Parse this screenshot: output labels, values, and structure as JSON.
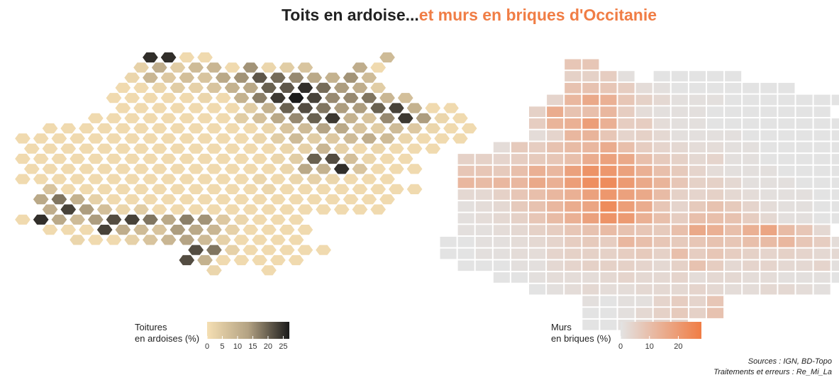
{
  "title": {
    "part1": "Toits en ardoise...",
    "part2": "et murs en briques d'Occitanie",
    "color1": "#222222",
    "color2": "#f07d45"
  },
  "chart_data": [
    {
      "type": "heatmap",
      "name": "hexbin-slate",
      "legend": {
        "title_line1": "Toitures",
        "title_line2": "en ardoises (%)",
        "ticks": [
          0,
          5,
          10,
          15,
          20,
          25
        ],
        "range": [
          0,
          27
        ],
        "colors": [
          "#f5dfb3",
          "#b3a283",
          "#1a1a1a"
        ]
      },
      "rows": [
        {
          "y": 0,
          "x0": 7,
          "values": [
            25,
            25,
            1,
            1,
            -1,
            -1,
            -1,
            -1,
            -1,
            -1,
            -1,
            -1,
            -1,
            8
          ]
        },
        {
          "y": 1,
          "x0": 6,
          "values": [
            3,
            11,
            4,
            8,
            9,
            1,
            15,
            2,
            4,
            6,
            -1,
            -1,
            11,
            1
          ]
        },
        {
          "y": 2,
          "x0": 6,
          "values": [
            2,
            9,
            5,
            7,
            6,
            12,
            15,
            21,
            19,
            16,
            12,
            10,
            15,
            8
          ]
        },
        {
          "y": 3,
          "x0": 5,
          "values": [
            1,
            1,
            2,
            4,
            3,
            6,
            10,
            12,
            20,
            21,
            25,
            19,
            14,
            11,
            4
          ]
        },
        {
          "y": 4,
          "x0": 5,
          "values": [
            1,
            1,
            1,
            1,
            1,
            2,
            1,
            10,
            17,
            24,
            27,
            23,
            16,
            16,
            18,
            9,
            7
          ]
        },
        {
          "y": 5,
          "x0": 5,
          "values": [
            1,
            1,
            1,
            1,
            1,
            1,
            1,
            4,
            10,
            20,
            22,
            18,
            14,
            14,
            20,
            23,
            10,
            1,
            1
          ]
        },
        {
          "y": 6,
          "x0": 4,
          "values": [
            1,
            1,
            1,
            1,
            1,
            1,
            1,
            1,
            4,
            7,
            12,
            16,
            20,
            24,
            10,
            6,
            16,
            24,
            14,
            2,
            1
          ]
        },
        {
          "y": 7,
          "x0": 1,
          "values": [
            1,
            1,
            1,
            1,
            1,
            1,
            1,
            1,
            1,
            1,
            1,
            1,
            2,
            6,
            8,
            13,
            12,
            6,
            4,
            8,
            5,
            2,
            1,
            1
          ]
        },
        {
          "y": 8,
          "x0": 0,
          "values": [
            1,
            1,
            1,
            1,
            1,
            1,
            1,
            1,
            1,
            1,
            1,
            1,
            1,
            2,
            4,
            8,
            4,
            5,
            8,
            11,
            8,
            2,
            1,
            1,
            1
          ]
        },
        {
          "y": 9,
          "x0": 0,
          "values": [
            1,
            1,
            1,
            1,
            1,
            1,
            1,
            1,
            1,
            1,
            1,
            1,
            1,
            1,
            2,
            3,
            9,
            3,
            1,
            2,
            1,
            1,
            1
          ]
        },
        {
          "y": 10,
          "x0": 0,
          "values": [
            1,
            1,
            1,
            1,
            1,
            1,
            1,
            1,
            1,
            1,
            1,
            1,
            1,
            1,
            2,
            4,
            20,
            22,
            7,
            2,
            1,
            1
          ]
        },
        {
          "y": 11,
          "x0": 0,
          "values": [
            1,
            1,
            1,
            1,
            1,
            1,
            1,
            1,
            1,
            1,
            1,
            1,
            1,
            1,
            2,
            12,
            10,
            25,
            6,
            1,
            1,
            1
          ]
        },
        {
          "y": 12,
          "x0": 0,
          "values": [
            1,
            1,
            1,
            1,
            1,
            1,
            1,
            1,
            1,
            1,
            1,
            1,
            1,
            2,
            1,
            2,
            3,
            2,
            1,
            1,
            1
          ]
        },
        {
          "y": 13,
          "x0": 1,
          "values": [
            6,
            1,
            1,
            1,
            1,
            1,
            1,
            1,
            1,
            1,
            1,
            1,
            2,
            1,
            1,
            1,
            1,
            1,
            1,
            1,
            1
          ]
        },
        {
          "y": 14,
          "x0": 1,
          "values": [
            12,
            18,
            10,
            3,
            1,
            1,
            1,
            1,
            1,
            1,
            1,
            1,
            1,
            1,
            1,
            1,
            1,
            1,
            1,
            1
          ]
        },
        {
          "y": 15,
          "x0": 1,
          "values": [
            11,
            23,
            14,
            7,
            2,
            4,
            1,
            1,
            1,
            1,
            1,
            1,
            1,
            1,
            1,
            1,
            1,
            1,
            1
          ]
        },
        {
          "y": 16,
          "x0": 0,
          "values": [
            1,
            25,
            12,
            8,
            14,
            22,
            23,
            18,
            12,
            17,
            15,
            5,
            2,
            1,
            1,
            1
          ]
        },
        {
          "y": 17,
          "x0": 1,
          "values": [
            1,
            1,
            1,
            23,
            11,
            8,
            6,
            14,
            12,
            9,
            3,
            1,
            1,
            1,
            1
          ]
        },
        {
          "y": 18,
          "x0": 3,
          "values": [
            2,
            1,
            1,
            3,
            6,
            9,
            13,
            8,
            3,
            1,
            1,
            1,
            1
          ]
        },
        {
          "y": 19,
          "x0": 9,
          "values": [
            22,
            18,
            3,
            1,
            1,
            1,
            1,
            1
          ]
        },
        {
          "y": 20,
          "x0": 9,
          "values": [
            22,
            10,
            1,
            1,
            1,
            1,
            1
          ]
        },
        {
          "y": 21,
          "x0": 10,
          "values": [
            2,
            -1,
            -1,
            1
          ]
        }
      ]
    },
    {
      "type": "heatmap",
      "name": "grid-brick",
      "legend": {
        "title_line1": "Murs",
        "title_line2": "en briques (%)",
        "ticks": [
          0,
          10,
          20
        ],
        "range": [
          0,
          28
        ],
        "colors": [
          "#e3e3e3",
          "#f07d45"
        ]
      },
      "rows": [
        {
          "y": 0,
          "x0": 7,
          "values": [
            8,
            8
          ]
        },
        {
          "y": 1,
          "x0": 7,
          "values": [
            5,
            5,
            6,
            1,
            -1,
            0,
            0,
            0,
            0,
            0
          ]
        },
        {
          "y": 2,
          "x0": 7,
          "values": [
            9,
            9,
            8,
            6,
            2,
            1,
            0,
            0,
            0,
            0,
            0,
            0,
            0
          ]
        },
        {
          "y": 3,
          "x0": 6,
          "values": [
            4,
            12,
            16,
            14,
            8,
            5,
            3,
            1,
            1,
            1,
            0,
            0,
            0,
            0,
            0,
            0,
            0
          ]
        },
        {
          "y": 4,
          "x0": 5,
          "values": [
            5,
            15,
            9,
            10,
            12,
            6,
            2,
            1,
            1,
            1,
            0,
            0,
            0,
            0,
            0,
            0,
            0
          ]
        },
        {
          "y": 5,
          "x0": 5,
          "values": [
            6,
            13,
            14,
            19,
            14,
            6,
            6,
            2,
            1,
            1,
            0,
            0,
            0,
            0,
            0,
            0,
            0,
            0,
            0,
            0
          ]
        },
        {
          "y": 6,
          "x0": 5,
          "values": [
            2,
            4,
            12,
            13,
            8,
            4,
            5,
            3,
            1,
            1,
            1,
            1,
            0,
            0,
            0,
            0,
            0,
            0,
            0,
            0,
            0,
            0
          ]
        },
        {
          "y": 7,
          "x0": 3,
          "values": [
            2,
            7,
            6,
            9,
            11,
            12,
            15,
            10,
            6,
            4,
            3,
            2,
            2,
            1,
            1,
            0,
            0,
            0,
            0,
            0,
            0,
            0,
            0,
            0,
            0
          ]
        },
        {
          "y": 8,
          "x0": 1,
          "values": [
            5,
            5,
            4,
            6,
            7,
            8,
            10,
            15,
            18,
            16,
            10,
            7,
            5,
            3,
            4,
            1,
            1,
            0,
            0,
            0,
            0,
            0,
            0,
            0,
            0,
            0,
            0
          ]
        },
        {
          "y": 9,
          "x0": 1,
          "values": [
            8,
            8,
            7,
            10,
            14,
            12,
            18,
            22,
            21,
            18,
            14,
            10,
            7,
            4,
            2,
            1,
            1,
            1,
            0,
            0,
            0,
            0,
            0,
            0,
            0,
            0
          ]
        },
        {
          "y": 10,
          "x0": 1,
          "values": [
            12,
            11,
            12,
            12,
            16,
            14,
            19,
            23,
            24,
            20,
            16,
            13,
            8,
            5,
            5,
            3,
            1,
            1,
            1,
            0,
            0,
            0,
            0,
            0,
            0
          ]
        },
        {
          "y": 11,
          "x0": 1,
          "values": [
            3,
            3,
            5,
            8,
            10,
            12,
            14,
            18,
            21,
            18,
            16,
            11,
            5,
            4,
            5,
            3,
            2,
            1,
            1,
            1,
            0,
            0,
            0,
            0
          ]
        },
        {
          "y": 12,
          "x0": 1,
          "values": [
            1,
            2,
            3,
            7,
            9,
            12,
            15,
            17,
            24,
            19,
            15,
            8,
            4,
            7,
            9,
            7,
            4,
            2,
            1,
            1,
            0,
            0
          ]
        },
        {
          "y": 13,
          "x0": 1,
          "values": [
            1,
            2,
            3,
            5,
            8,
            11,
            14,
            18,
            22,
            20,
            14,
            10,
            6,
            10,
            10,
            9,
            6,
            3,
            1,
            1,
            0,
            0
          ]
        },
        {
          "y": 14,
          "x0": 1,
          "values": [
            1,
            1,
            2,
            3,
            5,
            6,
            8,
            9,
            11,
            9,
            8,
            7,
            10,
            16,
            14,
            10,
            14,
            17,
            11,
            8,
            3
          ]
        },
        {
          "y": 15,
          "x0": 0,
          "values": [
            0,
            0,
            1,
            1,
            2,
            3,
            4,
            6,
            7,
            6,
            12,
            10,
            8,
            7,
            8,
            9,
            8,
            10,
            11,
            12,
            8,
            6,
            2
          ]
        },
        {
          "y": 16,
          "x0": 0,
          "values": [
            0,
            0,
            1,
            1,
            2,
            2,
            4,
            5,
            5,
            5,
            6,
            7,
            5,
            10,
            6,
            8,
            6,
            5,
            4,
            5,
            4,
            3,
            3,
            2,
            1,
            1,
            0,
            0,
            0
          ]
        },
        {
          "y": 17,
          "x0": 1,
          "values": [
            0,
            0,
            0,
            1,
            1,
            3,
            4,
            5,
            5,
            5,
            4,
            3,
            5,
            9,
            6,
            3,
            4,
            4,
            3,
            3,
            4,
            1,
            1,
            0,
            0,
            0,
            0,
            0,
            0,
            0
          ]
        },
        {
          "y": 18,
          "x0": 3,
          "values": [
            0,
            0,
            1,
            2,
            2,
            2,
            3,
            4,
            3,
            3,
            4,
            2,
            3,
            3,
            2,
            2,
            1,
            1,
            1,
            0,
            0,
            0
          ]
        },
        {
          "y": 19,
          "x0": 5,
          "values": [
            0,
            1,
            2,
            3,
            2,
            2,
            3,
            3,
            3,
            4,
            3,
            2,
            2,
            3,
            3,
            2,
            1
          ]
        },
        {
          "y": 20,
          "x0": 8,
          "values": [
            1,
            0,
            1,
            1,
            4,
            6,
            4,
            8
          ]
        },
        {
          "y": 21,
          "x0": 8,
          "values": [
            0,
            0,
            1,
            3,
            5,
            7,
            5,
            9
          ]
        },
        {
          "y": 22,
          "x0": 8,
          "values": [
            0,
            0,
            1,
            3,
            5,
            5
          ]
        }
      ]
    }
  ],
  "caption": {
    "line1": "Sources : IGN, BD-Topo",
    "line2": "Traitements et erreurs : Re_Mi_La"
  }
}
